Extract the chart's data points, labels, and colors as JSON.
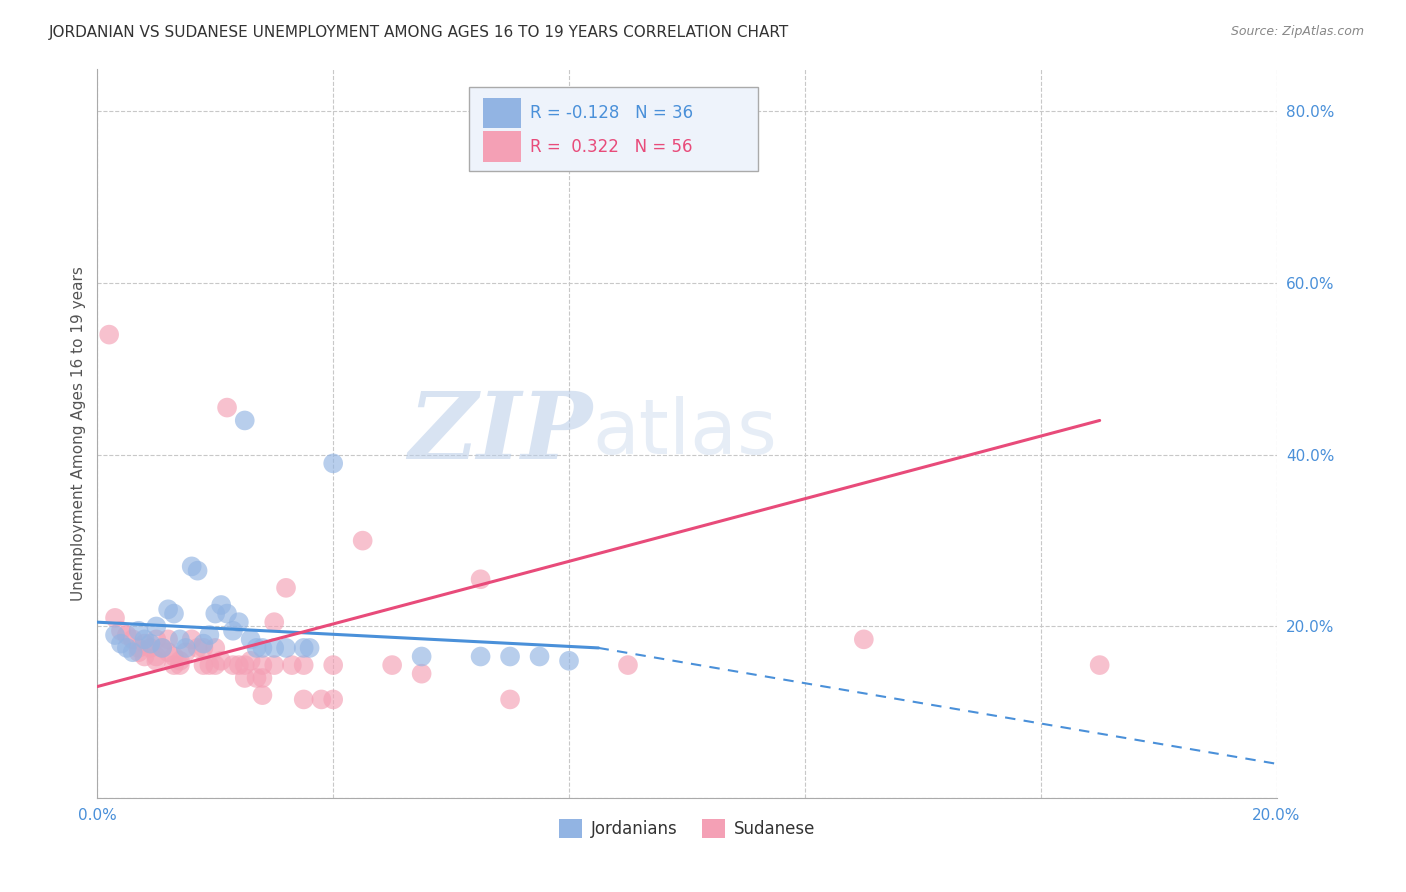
{
  "title": "JORDANIAN VS SUDANESE UNEMPLOYMENT AMONG AGES 16 TO 19 YEARS CORRELATION CHART",
  "source": "Source: ZipAtlas.com",
  "ylabel": "Unemployment Among Ages 16 to 19 years",
  "xlim": [
    0.0,
    0.2
  ],
  "ylim": [
    0.0,
    0.85
  ],
  "xticks": [
    0.0,
    0.04,
    0.08,
    0.12,
    0.16,
    0.2
  ],
  "yticks": [
    0.0,
    0.2,
    0.4,
    0.6,
    0.8
  ],
  "ytick_labels": [
    "",
    "20.0%",
    "40.0%",
    "60.0%",
    "80.0%"
  ],
  "xtick_labels": [
    "0.0%",
    "",
    "",
    "",
    "",
    "20.0%"
  ],
  "grid_color": "#c8c8c8",
  "background_color": "#ffffff",
  "jordanian_color": "#92b4e3",
  "sudanese_color": "#f4a0b5",
  "jordanian_R": "-0.128",
  "jordanian_N": "36",
  "sudanese_R": "0.322",
  "sudanese_N": "56",
  "jordanian_scatter": [
    [
      0.003,
      0.19
    ],
    [
      0.004,
      0.18
    ],
    [
      0.005,
      0.175
    ],
    [
      0.006,
      0.17
    ],
    [
      0.007,
      0.195
    ],
    [
      0.008,
      0.185
    ],
    [
      0.009,
      0.18
    ],
    [
      0.01,
      0.2
    ],
    [
      0.011,
      0.175
    ],
    [
      0.012,
      0.22
    ],
    [
      0.013,
      0.215
    ],
    [
      0.014,
      0.185
    ],
    [
      0.015,
      0.175
    ],
    [
      0.016,
      0.27
    ],
    [
      0.017,
      0.265
    ],
    [
      0.018,
      0.18
    ],
    [
      0.019,
      0.19
    ],
    [
      0.02,
      0.215
    ],
    [
      0.021,
      0.225
    ],
    [
      0.022,
      0.215
    ],
    [
      0.023,
      0.195
    ],
    [
      0.024,
      0.205
    ],
    [
      0.025,
      0.44
    ],
    [
      0.026,
      0.185
    ],
    [
      0.027,
      0.175
    ],
    [
      0.028,
      0.175
    ],
    [
      0.03,
      0.175
    ],
    [
      0.032,
      0.175
    ],
    [
      0.035,
      0.175
    ],
    [
      0.036,
      0.175
    ],
    [
      0.04,
      0.39
    ],
    [
      0.055,
      0.165
    ],
    [
      0.065,
      0.165
    ],
    [
      0.07,
      0.165
    ],
    [
      0.075,
      0.165
    ],
    [
      0.08,
      0.16
    ]
  ],
  "sudanese_scatter": [
    [
      0.002,
      0.54
    ],
    [
      0.003,
      0.21
    ],
    [
      0.004,
      0.195
    ],
    [
      0.005,
      0.19
    ],
    [
      0.006,
      0.185
    ],
    [
      0.007,
      0.175
    ],
    [
      0.007,
      0.17
    ],
    [
      0.008,
      0.18
    ],
    [
      0.008,
      0.165
    ],
    [
      0.009,
      0.175
    ],
    [
      0.01,
      0.185
    ],
    [
      0.01,
      0.165
    ],
    [
      0.01,
      0.16
    ],
    [
      0.011,
      0.175
    ],
    [
      0.012,
      0.185
    ],
    [
      0.012,
      0.17
    ],
    [
      0.013,
      0.165
    ],
    [
      0.013,
      0.155
    ],
    [
      0.014,
      0.16
    ],
    [
      0.014,
      0.155
    ],
    [
      0.015,
      0.17
    ],
    [
      0.016,
      0.185
    ],
    [
      0.017,
      0.175
    ],
    [
      0.018,
      0.175
    ],
    [
      0.018,
      0.155
    ],
    [
      0.019,
      0.155
    ],
    [
      0.02,
      0.175
    ],
    [
      0.02,
      0.155
    ],
    [
      0.021,
      0.16
    ],
    [
      0.022,
      0.455
    ],
    [
      0.023,
      0.155
    ],
    [
      0.024,
      0.155
    ],
    [
      0.025,
      0.155
    ],
    [
      0.025,
      0.14
    ],
    [
      0.026,
      0.16
    ],
    [
      0.027,
      0.14
    ],
    [
      0.028,
      0.155
    ],
    [
      0.028,
      0.12
    ],
    [
      0.028,
      0.14
    ],
    [
      0.03,
      0.205
    ],
    [
      0.03,
      0.155
    ],
    [
      0.032,
      0.245
    ],
    [
      0.033,
      0.155
    ],
    [
      0.035,
      0.155
    ],
    [
      0.035,
      0.115
    ],
    [
      0.038,
      0.115
    ],
    [
      0.04,
      0.155
    ],
    [
      0.04,
      0.115
    ],
    [
      0.045,
      0.3
    ],
    [
      0.05,
      0.155
    ],
    [
      0.055,
      0.145
    ],
    [
      0.065,
      0.255
    ],
    [
      0.07,
      0.115
    ],
    [
      0.09,
      0.155
    ],
    [
      0.13,
      0.185
    ],
    [
      0.17,
      0.155
    ]
  ],
  "jordanian_line_solid": {
    "x0": 0.0,
    "y0": 0.205,
    "x1": 0.085,
    "y1": 0.175
  },
  "jordanian_line_dash": {
    "x0": 0.085,
    "y0": 0.175,
    "x1": 0.2,
    "y1": 0.04
  },
  "sudanese_line_solid": {
    "x0": 0.0,
    "y0": 0.13,
    "x1": 0.17,
    "y1": 0.44
  },
  "watermark_zip": "ZIP",
  "watermark_atlas": "atlas",
  "title_fontsize": 11,
  "axis_label_fontsize": 11,
  "tick_fontsize": 11,
  "marker_size": 200
}
